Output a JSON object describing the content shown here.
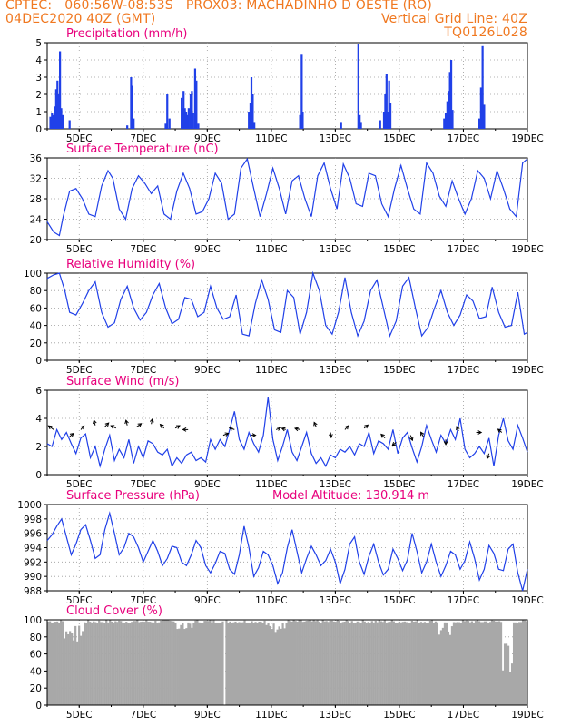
{
  "header": {
    "line1": "CPTEC:   060:56W-08:53S   PROX03: MACHADINHO D OESTE (RO)",
    "line2_left": "04DEC2020 40Z (GMT)",
    "line2_right": "Vertical Grid Line: 40Z",
    "line3_right": "TQ0126L028",
    "model_altitude": "Model Altitude: 130.914 m"
  },
  "colors": {
    "header": "#f07820",
    "title": "#e8007c",
    "series": "#2040e8",
    "cloud": "#a8a8a8",
    "grid": "#9a9a9a"
  },
  "x_ticks": [
    "5DEC",
    "7DEC",
    "9DEC",
    "11DEC",
    "13DEC",
    "15DEC",
    "17DEC",
    "19DEC"
  ],
  "x_range": [
    4.0,
    19.0
  ],
  "chart_data": [
    {
      "type": "bar",
      "title": "Precipitation (mm/h)",
      "ylim": [
        0,
        5
      ],
      "yticks": [
        0,
        1,
        2,
        3,
        4,
        5
      ],
      "x_units": "days (December 2020)",
      "bars": [
        [
          4.1,
          0.7
        ],
        [
          4.15,
          0.9
        ],
        [
          4.2,
          0.8
        ],
        [
          4.25,
          1.3
        ],
        [
          4.28,
          2.3
        ],
        [
          4.32,
          2.8
        ],
        [
          4.36,
          2.0
        ],
        [
          4.4,
          4.5
        ],
        [
          4.44,
          1.2
        ],
        [
          4.48,
          0.8
        ],
        [
          4.7,
          0.5
        ],
        [
          6.5,
          0.2
        ],
        [
          6.62,
          3.0
        ],
        [
          6.66,
          2.5
        ],
        [
          6.7,
          0.6
        ],
        [
          7.7,
          0.3
        ],
        [
          7.75,
          2.0
        ],
        [
          7.82,
          0.6
        ],
        [
          8.2,
          1.8
        ],
        [
          8.23,
          1.2
        ],
        [
          8.26,
          2.2
        ],
        [
          8.3,
          1.2
        ],
        [
          8.34,
          1.0
        ],
        [
          8.38,
          0.8
        ],
        [
          8.42,
          1.2
        ],
        [
          8.48,
          2.0
        ],
        [
          8.52,
          2.2
        ],
        [
          8.56,
          0.9
        ],
        [
          8.62,
          3.5
        ],
        [
          8.66,
          2.8
        ],
        [
          8.72,
          0.3
        ],
        [
          10.3,
          1.0
        ],
        [
          10.35,
          1.5
        ],
        [
          10.38,
          3.0
        ],
        [
          10.42,
          2.0
        ],
        [
          10.47,
          0.4
        ],
        [
          11.9,
          0.8
        ],
        [
          11.95,
          4.3
        ],
        [
          11.98,
          1.0
        ],
        [
          13.18,
          0.4
        ],
        [
          13.72,
          4.9
        ],
        [
          13.76,
          0.8
        ],
        [
          13.8,
          0.4
        ],
        [
          14.4,
          0.5
        ],
        [
          14.52,
          1.0
        ],
        [
          14.56,
          2.0
        ],
        [
          14.6,
          3.2
        ],
        [
          14.64,
          1.0
        ],
        [
          14.68,
          2.8
        ],
        [
          14.72,
          1.5
        ],
        [
          16.4,
          0.6
        ],
        [
          16.45,
          0.9
        ],
        [
          16.5,
          1.6
        ],
        [
          16.54,
          2.2
        ],
        [
          16.58,
          3.3
        ],
        [
          16.62,
          4.0
        ],
        [
          16.66,
          1.1
        ],
        [
          17.5,
          0.6
        ],
        [
          17.55,
          2.4
        ],
        [
          17.6,
          4.8
        ],
        [
          17.65,
          1.4
        ]
      ]
    },
    {
      "type": "line",
      "title": "Surface Temperature (nC)",
      "ylim": [
        20,
        36
      ],
      "yticks": [
        20,
        24,
        28,
        32,
        36
      ],
      "x": [
        4.0,
        4.2,
        4.38,
        4.5,
        4.7,
        4.9,
        5.1,
        5.3,
        5.5,
        5.7,
        5.9,
        6.05,
        6.25,
        6.45,
        6.65,
        6.85,
        7.05,
        7.25,
        7.45,
        7.65,
        7.85,
        8.05,
        8.25,
        8.45,
        8.65,
        8.85,
        9.05,
        9.25,
        9.45,
        9.65,
        9.85,
        10.05,
        10.25,
        10.45,
        10.65,
        10.85,
        11.05,
        11.25,
        11.45,
        11.65,
        11.85,
        12.05,
        12.25,
        12.45,
        12.65,
        12.85,
        13.05,
        13.25,
        13.45,
        13.65,
        13.85,
        14.05,
        14.25,
        14.45,
        14.65,
        14.85,
        15.05,
        15.25,
        15.45,
        15.65,
        15.85,
        16.05,
        16.25,
        16.45,
        16.65,
        16.85,
        17.05,
        17.25,
        17.45,
        17.65,
        17.85,
        18.05,
        18.25,
        18.45,
        18.65,
        18.85,
        19.0
      ],
      "y": [
        23.5,
        21.5,
        20.8,
        24.5,
        29.5,
        30.0,
        28.0,
        25.0,
        24.5,
        30.5,
        33.5,
        32.0,
        26.0,
        24.0,
        30.0,
        32.5,
        31.0,
        29.0,
        30.5,
        25.0,
        24.0,
        29.5,
        33.0,
        30.0,
        25.0,
        25.5,
        28.0,
        33.0,
        31.0,
        24.0,
        25.0,
        34.0,
        35.8,
        30.0,
        24.5,
        29.0,
        34.0,
        30.0,
        25.0,
        31.5,
        32.5,
        28.0,
        24.5,
        32.5,
        35.0,
        30.0,
        26.0,
        34.8,
        32.0,
        27.0,
        26.5,
        33.0,
        32.5,
        27.0,
        24.5,
        30.0,
        34.5,
        30.0,
        26.0,
        25.0,
        35.0,
        33.0,
        28.5,
        26.5,
        31.5,
        28.0,
        25.0,
        28.0,
        33.5,
        32.0,
        28.0,
        33.5,
        30.0,
        26.0,
        24.5,
        35.0,
        35.8
      ]
    },
    {
      "type": "line",
      "title": "Relative Humidity (%)",
      "ylim": [
        0,
        100
      ],
      "yticks": [
        0,
        20,
        40,
        60,
        80,
        100
      ],
      "x": [
        4.0,
        4.2,
        4.38,
        4.55,
        4.7,
        4.9,
        5.1,
        5.3,
        5.5,
        5.7,
        5.9,
        6.1,
        6.3,
        6.5,
        6.7,
        6.9,
        7.1,
        7.3,
        7.5,
        7.7,
        7.9,
        8.1,
        8.3,
        8.5,
        8.7,
        8.9,
        9.1,
        9.3,
        9.5,
        9.7,
        9.9,
        10.1,
        10.3,
        10.5,
        10.7,
        10.9,
        11.1,
        11.3,
        11.5,
        11.7,
        11.9,
        12.1,
        12.3,
        12.5,
        12.7,
        12.9,
        13.1,
        13.3,
        13.5,
        13.7,
        13.9,
        14.1,
        14.3,
        14.5,
        14.7,
        14.9,
        15.1,
        15.3,
        15.5,
        15.7,
        15.9,
        16.1,
        16.3,
        16.5,
        16.7,
        16.9,
        17.1,
        17.3,
        17.5,
        17.7,
        17.9,
        18.1,
        18.3,
        18.5,
        18.7,
        18.9,
        19.0
      ],
      "y": [
        94,
        98,
        100,
        80,
        55,
        52,
        65,
        80,
        90,
        55,
        38,
        43,
        70,
        85,
        60,
        46,
        55,
        75,
        88,
        60,
        42,
        47,
        72,
        70,
        50,
        55,
        85,
        60,
        47,
        50,
        75,
        30,
        28,
        65,
        92,
        70,
        35,
        32,
        80,
        72,
        30,
        55,
        100,
        80,
        40,
        30,
        55,
        95,
        55,
        28,
        45,
        80,
        92,
        60,
        28,
        45,
        85,
        95,
        60,
        28,
        38,
        60,
        80,
        55,
        40,
        52,
        75,
        68,
        48,
        50,
        84,
        55,
        38,
        40,
        78,
        30,
        32
      ]
    },
    {
      "type": "line",
      "title": "Surface Wind (m/s)",
      "ylim": [
        0,
        6
      ],
      "yticks": [
        0,
        2,
        4,
        6
      ],
      "x": [
        4.0,
        4.15,
        4.3,
        4.45,
        4.6,
        4.75,
        4.9,
        5.05,
        5.2,
        5.35,
        5.5,
        5.65,
        5.8,
        5.95,
        6.1,
        6.25,
        6.4,
        6.55,
        6.7,
        6.85,
        7.0,
        7.15,
        7.3,
        7.45,
        7.6,
        7.75,
        7.9,
        8.05,
        8.2,
        8.35,
        8.5,
        8.65,
        8.8,
        8.95,
        9.1,
        9.25,
        9.4,
        9.55,
        9.7,
        9.85,
        10.0,
        10.15,
        10.3,
        10.45,
        10.6,
        10.75,
        10.9,
        11.05,
        11.2,
        11.35,
        11.5,
        11.65,
        11.8,
        11.95,
        12.1,
        12.25,
        12.4,
        12.55,
        12.7,
        12.85,
        13.0,
        13.15,
        13.3,
        13.45,
        13.6,
        13.75,
        13.9,
        14.05,
        14.2,
        14.35,
        14.5,
        14.65,
        14.8,
        14.95,
        15.1,
        15.25,
        15.4,
        15.55,
        15.7,
        15.85,
        16.0,
        16.15,
        16.3,
        16.45,
        16.6,
        16.75,
        16.9,
        17.05,
        17.2,
        17.35,
        17.5,
        17.65,
        17.8,
        17.95,
        18.1,
        18.25,
        18.4,
        18.55,
        18.7,
        18.85,
        19.0
      ],
      "y": [
        2.2,
        2.0,
        3.2,
        2.5,
        3.0,
        2.2,
        1.5,
        2.6,
        2.9,
        1.2,
        2.0,
        0.6,
        1.8,
        2.8,
        1.0,
        1.8,
        1.2,
        2.5,
        0.8,
        2.0,
        1.2,
        2.4,
        2.2,
        1.6,
        1.4,
        1.8,
        0.6,
        1.2,
        0.8,
        1.4,
        1.6,
        1.0,
        1.2,
        0.9,
        2.5,
        1.8,
        2.5,
        2.0,
        3.2,
        4.5,
        2.5,
        1.8,
        3.0,
        2.2,
        1.6,
        2.8,
        5.5,
        2.5,
        1.0,
        2.0,
        3.2,
        1.6,
        1.0,
        2.0,
        3.0,
        1.5,
        0.8,
        1.2,
        0.6,
        1.4,
        1.2,
        1.8,
        1.6,
        2.0,
        1.4,
        2.2,
        2.0,
        3.0,
        1.5,
        2.4,
        2.2,
        1.8,
        3.2,
        1.5,
        2.6,
        3.0,
        1.9,
        0.9,
        2.0,
        3.5,
        2.5,
        1.6,
        2.8,
        2.2,
        3.2,
        2.5,
        4.0,
        1.8,
        1.2,
        1.5,
        2.0,
        1.5,
        2.6,
        0.6,
        2.8,
        4.0,
        2.4,
        1.8,
        3.5,
        2.6,
        1.6
      ],
      "arrows": [
        [
          4.2,
          3.2,
          -0.8,
          0.6
        ],
        [
          4.7,
          2.7,
          0.6,
          0.5
        ],
        [
          5.05,
          3.2,
          0.5,
          0.6
        ],
        [
          5.5,
          3.5,
          -0.2,
          0.8
        ],
        [
          5.8,
          3.4,
          0.6,
          0.6
        ],
        [
          6.15,
          3.3,
          -0.8,
          0.4
        ],
        [
          6.5,
          3.5,
          -0.2,
          0.8
        ],
        [
          6.8,
          3.4,
          0.7,
          0.5
        ],
        [
          7.25,
          3.6,
          0.2,
          0.8
        ],
        [
          7.65,
          3.3,
          -0.6,
          0.6
        ],
        [
          8.0,
          3.3,
          0.7,
          0.4
        ],
        [
          8.4,
          3.2,
          -0.8,
          0.0
        ],
        [
          9.5,
          2.8,
          0.8,
          0.3
        ],
        [
          9.85,
          3.2,
          -0.8,
          0.3
        ],
        [
          10.35,
          2.8,
          0.8,
          0.0
        ],
        [
          11.15,
          3.2,
          0.7,
          0.3
        ],
        [
          11.45,
          3.2,
          -0.6,
          0.2
        ],
        [
          11.9,
          3.2,
          -0.8,
          0.2
        ],
        [
          12.4,
          3.4,
          -0.3,
          0.7
        ],
        [
          12.85,
          3.0,
          0.1,
          -0.8
        ],
        [
          13.3,
          3.2,
          0.5,
          0.6
        ],
        [
          13.9,
          3.3,
          0.6,
          0.5
        ],
        [
          14.55,
          2.6,
          -0.6,
          0.6
        ],
        [
          14.9,
          2.3,
          -0.6,
          -0.5
        ],
        [
          15.35,
          2.8,
          0.3,
          -0.8
        ],
        [
          15.75,
          2.7,
          -0.4,
          0.7
        ],
        [
          16.45,
          2.5,
          0.0,
          -0.8
        ],
        [
          16.85,
          3.1,
          -0.3,
          0.7
        ],
        [
          17.4,
          3.0,
          0.8,
          0.0
        ],
        [
          17.8,
          1.5,
          -0.3,
          -0.8
        ],
        [
          18.2,
          3.0,
          -0.6,
          0.5
        ]
      ]
    },
    {
      "type": "line",
      "title": "Surface Pressure (hPa)",
      "ylim": [
        988,
        1000
      ],
      "yticks": [
        988,
        990,
        992,
        994,
        996,
        998,
        1000
      ],
      "x": [
        4.0,
        4.15,
        4.3,
        4.45,
        4.6,
        4.75,
        4.9,
        5.05,
        5.2,
        5.35,
        5.5,
        5.65,
        5.8,
        5.95,
        6.1,
        6.25,
        6.4,
        6.55,
        6.7,
        6.85,
        7.0,
        7.15,
        7.3,
        7.45,
        7.6,
        7.75,
        7.9,
        8.05,
        8.2,
        8.35,
        8.5,
        8.65,
        8.8,
        8.95,
        9.1,
        9.25,
        9.4,
        9.55,
        9.7,
        9.85,
        10.0,
        10.15,
        10.3,
        10.45,
        10.6,
        10.75,
        10.9,
        11.05,
        11.2,
        11.35,
        11.5,
        11.65,
        11.8,
        11.95,
        12.1,
        12.25,
        12.4,
        12.55,
        12.7,
        12.85,
        13.0,
        13.15,
        13.3,
        13.45,
        13.6,
        13.75,
        13.9,
        14.05,
        14.2,
        14.35,
        14.5,
        14.65,
        14.8,
        14.95,
        15.1,
        15.25,
        15.4,
        15.55,
        15.7,
        15.85,
        16.0,
        16.15,
        16.3,
        16.45,
        16.6,
        16.75,
        16.9,
        17.05,
        17.2,
        17.35,
        17.5,
        17.65,
        17.8,
        17.95,
        18.1,
        18.25,
        18.4,
        18.55,
        18.7,
        18.85,
        19.0
      ],
      "y": [
        995.0,
        995.8,
        997.0,
        998.0,
        995.5,
        993.0,
        994.5,
        996.5,
        997.2,
        995.0,
        992.5,
        993.0,
        996.5,
        998.8,
        996.0,
        993.0,
        994.0,
        996.0,
        995.5,
        994.0,
        992.0,
        993.5,
        995.0,
        993.5,
        991.5,
        992.5,
        994.2,
        994.0,
        992.0,
        991.5,
        993.0,
        995.0,
        994.0,
        991.5,
        990.5,
        991.8,
        993.5,
        993.2,
        991.0,
        990.3,
        993.0,
        997.0,
        994.0,
        990.0,
        991.2,
        993.5,
        993.0,
        991.5,
        989.0,
        990.5,
        994.0,
        996.5,
        993.5,
        990.5,
        992.5,
        994.2,
        993.0,
        991.5,
        992.2,
        993.8,
        992.0,
        989.0,
        991.0,
        994.5,
        995.5,
        992.0,
        990.3,
        992.8,
        994.5,
        992.0,
        990.2,
        991.0,
        993.8,
        992.5,
        990.8,
        992.3,
        996.0,
        993.5,
        990.5,
        992.0,
        994.5,
        992.0,
        990.0,
        991.5,
        993.5,
        993.0,
        991.0,
        992.2,
        994.8,
        992.5,
        989.5,
        991.0,
        994.3,
        993.2,
        991.0,
        990.8,
        993.8,
        994.5,
        990.5,
        988.0,
        991.0
      ]
    },
    {
      "type": "bar",
      "title": "Cloud Cover (%)",
      "ylim": [
        0,
        100
      ],
      "yticks": [
        0,
        20,
        40,
        60,
        80,
        100
      ]
    }
  ]
}
